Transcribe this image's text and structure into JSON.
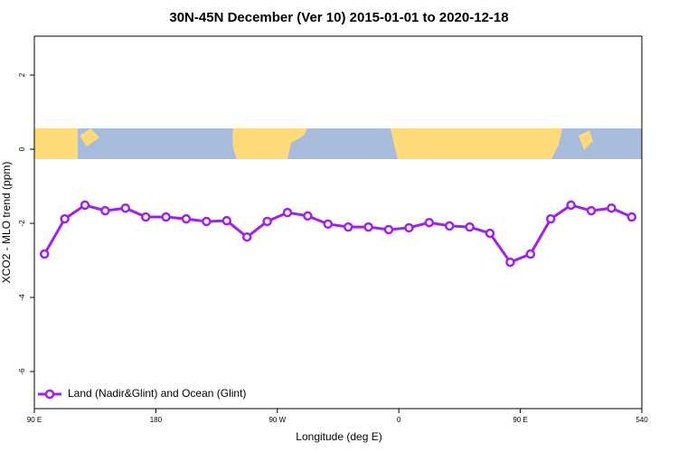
{
  "chart_data": {
    "type": "line",
    "title": "30N-45N December (Ver 10)   2015-01-01 to 2020-12-18",
    "x_label": "Longitude (deg E)",
    "y_label": "XCO2 - MLO trend (ppm)",
    "xlim": [
      90,
      540
    ],
    "ylim": [
      -7,
      3.05
    ],
    "xticks": [
      {
        "value": 90,
        "label": "90 E"
      },
      180,
      {
        "value": 270,
        "label": "90 W"
      },
      {
        "value": 360,
        "label": "0"
      },
      {
        "value": 450,
        "label": "90 E"
      },
      540
    ],
    "yticks": [
      2,
      0,
      -2,
      -4,
      -6
    ],
    "legend_position": "bottom-left",
    "x": [
      97.5,
      112.5,
      127.5,
      142.5,
      157.5,
      172.5,
      187.5,
      202.5,
      217.5,
      232.5,
      247.5,
      262.5,
      277.5,
      292.5,
      307.5,
      322.5,
      337.5,
      352.5,
      367.5,
      382.5,
      397.5,
      412.5,
      427.5,
      442.5,
      457.5,
      472.5,
      487.5,
      502.5,
      517.5,
      532.5
    ],
    "series": [
      {
        "name": "Land (Nadir&Glint) and Ocean (Glint)",
        "color": "#a020f0",
        "values": [
          -2.83,
          -1.88,
          -1.51,
          -1.66,
          -1.59,
          -1.83,
          -1.83,
          -1.88,
          -1.95,
          -1.93,
          -2.37,
          -1.95,
          -1.71,
          -1.8,
          -2.02,
          -2.1,
          -2.1,
          -2.17,
          -2.12,
          -1.98,
          -2.07,
          -2.1,
          -2.27,
          -3.05,
          -2.83,
          -1.88,
          -1.51,
          -1.66,
          -1.59,
          -1.83
        ]
      }
    ]
  }
}
